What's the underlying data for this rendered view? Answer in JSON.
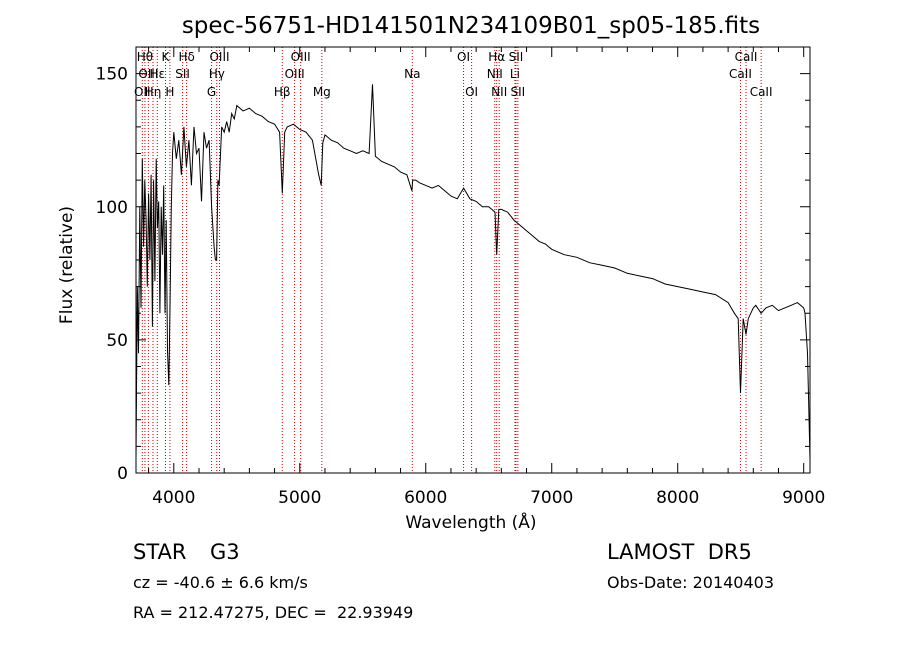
{
  "chart_data": {
    "type": "line",
    "title": "spec-56751-HD141501N234109B01_sp05-185.fits",
    "xlabel": "Wavelength (Å)",
    "ylabel": "Flux (relative)",
    "xlim": [
      3700,
      9050
    ],
    "ylim": [
      0,
      160
    ],
    "xticks": [
      4000,
      5000,
      6000,
      7000,
      8000,
      9000
    ],
    "yticks": [
      0,
      50,
      100,
      150
    ],
    "series": [
      {
        "x": [
          3700,
          3710,
          3720,
          3730,
          3740,
          3750,
          3760,
          3770,
          3780,
          3790,
          3800,
          3810,
          3820,
          3830,
          3840,
          3850,
          3860,
          3870,
          3880,
          3890,
          3900,
          3910,
          3920,
          3930,
          3940,
          3950,
          3960,
          3970,
          3980,
          3990,
          4000,
          4020,
          4040,
          4060,
          4080,
          4100,
          4120,
          4140,
          4160,
          4180,
          4200,
          4220,
          4240,
          4260,
          4280,
          4300,
          4320,
          4330,
          4340,
          4350,
          4360,
          4380,
          4400,
          4420,
          4440,
          4460,
          4480,
          4500,
          4550,
          4600,
          4650,
          4700,
          4750,
          4800,
          4840,
          4861,
          4880,
          4900,
          4950,
          5000,
          5050,
          5100,
          5150,
          5170,
          5183,
          5200,
          5250,
          5300,
          5350,
          5400,
          5450,
          5500,
          5550,
          5577,
          5600,
          5650,
          5700,
          5750,
          5800,
          5850,
          5890,
          5896,
          5920,
          5950,
          6000,
          6050,
          6100,
          6150,
          6200,
          6250,
          6300,
          6350,
          6400,
          6450,
          6500,
          6550,
          6563,
          6580,
          6600,
          6650,
          6700,
          6750,
          6800,
          6850,
          6900,
          6950,
          7000,
          7100,
          7200,
          7300,
          7400,
          7500,
          7600,
          7700,
          7800,
          7900,
          8000,
          8100,
          8200,
          8300,
          8400,
          8450,
          8480,
          8498,
          8520,
          8542,
          8560,
          8600,
          8620,
          8662,
          8700,
          8750,
          8800,
          8850,
          8900,
          8950,
          9000,
          9010,
          9030,
          9050
        ],
        "y": [
          5,
          70,
          45,
          100,
          62,
          118,
          85,
          110,
          95,
          70,
          105,
          80,
          112,
          55,
          110,
          72,
          118,
          92,
          102,
          60,
          100,
          82,
          108,
          60,
          95,
          46,
          33,
          62,
          100,
          120,
          128,
          118,
          125,
          112,
          130,
          115,
          125,
          108,
          130,
          120,
          122,
          102,
          128,
          122,
          125,
          100,
          85,
          80,
          80,
          110,
          108,
          130,
          128,
          132,
          128,
          135,
          133,
          138,
          136,
          137,
          135,
          134,
          132,
          131,
          128,
          105,
          128,
          130,
          131,
          129,
          128,
          125,
          112,
          108,
          124,
          127,
          125,
          124,
          122,
          121,
          120,
          121,
          120,
          146,
          119,
          117,
          116,
          115,
          113,
          112,
          106,
          110,
          110,
          109,
          108,
          107,
          108,
          106,
          104,
          103,
          107,
          103,
          102,
          100,
          100,
          98,
          82,
          99,
          99,
          98,
          95,
          93,
          91,
          89,
          87,
          86,
          84,
          82,
          81,
          79,
          78,
          77,
          75,
          74,
          73,
          71,
          70,
          69,
          68,
          67,
          64,
          60,
          58,
          30,
          58,
          52,
          58,
          62,
          63,
          60,
          62,
          63,
          61,
          62,
          63,
          64,
          62,
          60,
          45,
          5
        ]
      }
    ],
    "lines": [
      {
        "w": 3750,
        "label": "OII",
        "row": 3
      },
      {
        "w": 3771,
        "label": "Hθ",
        "row": 1
      },
      {
        "w": 3798,
        "label": "OIII",
        "row": 2
      },
      {
        "w": 3835,
        "label": "Hη",
        "row": 3
      },
      {
        "w": 3869,
        "label": "Hε",
        "row": 2
      },
      {
        "w": 3934,
        "label": "K",
        "row": 1
      },
      {
        "w": 3969,
        "label": "H",
        "row": 3
      },
      {
        "w": 4070,
        "label": "SII",
        "row": 2
      },
      {
        "w": 4102,
        "label": "Hδ",
        "row": 1
      },
      {
        "w": 4300,
        "label": "G",
        "row": 3
      },
      {
        "w": 4341,
        "label": "Hγ",
        "row": 2
      },
      {
        "w": 4363,
        "label": "OIII",
        "row": 1
      },
      {
        "w": 4861,
        "label": "Hβ",
        "row": 3
      },
      {
        "w": 4959,
        "label": "OIII",
        "row": 2
      },
      {
        "w": 5007,
        "label": "OIII",
        "row": 1
      },
      {
        "w": 5175,
        "label": "Mg",
        "row": 3
      },
      {
        "w": 5893,
        "label": "Na",
        "row": 2
      },
      {
        "w": 6300,
        "label": "OI",
        "row": 1
      },
      {
        "w": 6364,
        "label": "OI",
        "row": 3
      },
      {
        "w": 6548,
        "label": "NII",
        "row": 2
      },
      {
        "w": 6563,
        "label": "Hα",
        "row": 1
      },
      {
        "w": 6583,
        "label": "NII",
        "row": 3
      },
      {
        "w": 6708,
        "label": "Li",
        "row": 2
      },
      {
        "w": 6716,
        "label": "SII",
        "row": 1
      },
      {
        "w": 6731,
        "label": "SII",
        "row": 3
      },
      {
        "w": 8498,
        "label": "CaII",
        "row": 2
      },
      {
        "w": 8542,
        "label": "CaII",
        "row": 1
      },
      {
        "w": 8662,
        "label": "CaII",
        "row": 3
      }
    ]
  },
  "info": {
    "object_class": "STAR",
    "subclass": "G3",
    "cz": "cz = -40.6 ± 6.6 km/s",
    "radec": "RA = 212.47275, DEC =  22.93949",
    "survey": "LAMOST  DR5",
    "obs_date": "Obs-Date: 20140403"
  },
  "colors": {
    "spectrum": "#000000",
    "line_markers": "#c00000",
    "background": "#ffffff"
  }
}
